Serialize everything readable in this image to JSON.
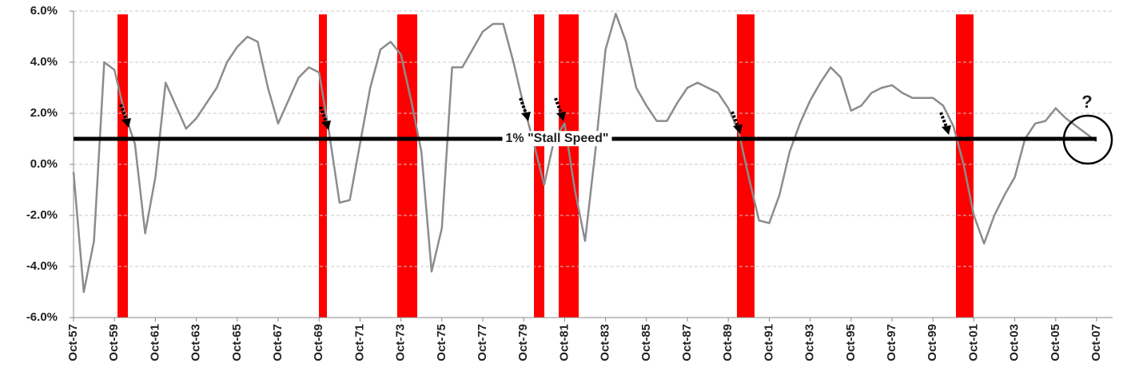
{
  "chart_data": {
    "type": "line",
    "categories": [
      "Oct-57",
      null,
      null,
      null,
      "Oct-59",
      null,
      null,
      null,
      "Oct-61",
      null,
      null,
      null,
      "Oct-63",
      null,
      null,
      null,
      "Oct-65",
      null,
      null,
      null,
      "Oct-67",
      null,
      null,
      null,
      "Oct-69",
      null,
      null,
      null,
      "Oct-71",
      null,
      null,
      null,
      "Oct-73",
      null,
      null,
      null,
      "Oct-75",
      null,
      null,
      null,
      "Oct-77",
      null,
      null,
      null,
      "Oct-79",
      null,
      null,
      null,
      "Oct-81",
      null,
      null,
      null,
      "Oct-83",
      null,
      null,
      null,
      "Oct-85",
      null,
      null,
      null,
      "Oct-87",
      null,
      null,
      null,
      "Oct-89",
      null,
      null,
      null,
      "Oct-91",
      null,
      null,
      null,
      "Oct-93",
      null,
      null,
      null,
      "Oct-95",
      null,
      null,
      null,
      "Oct-97",
      null,
      null,
      null,
      "Oct-99",
      null,
      null,
      null,
      "Oct-01",
      null,
      null,
      null,
      "Oct-03",
      null,
      null,
      null,
      "Oct-05",
      null,
      null,
      null,
      "Oct-07"
    ],
    "values": [
      -0.3,
      -5.0,
      -3.0,
      4.0,
      3.7,
      2.0,
      0.8,
      -2.7,
      -0.5,
      3.2,
      2.3,
      1.4,
      1.8,
      2.4,
      3.0,
      4.0,
      4.6,
      5.0,
      4.8,
      3.0,
      1.6,
      2.5,
      3.4,
      3.8,
      3.6,
      1.2,
      -1.5,
      -1.4,
      0.8,
      3.0,
      4.5,
      4.8,
      4.3,
      2.5,
      0.5,
      -4.2,
      -2.5,
      3.8,
      3.8,
      4.5,
      5.2,
      5.5,
      5.5,
      4.0,
      2.3,
      0.8,
      -0.8,
      1.0,
      1.6,
      -1.0,
      -3.0,
      0.5,
      4.5,
      5.9,
      4.8,
      3.0,
      2.3,
      1.7,
      1.7,
      2.4,
      3.0,
      3.2,
      3.0,
      2.8,
      2.2,
      1.3,
      -0.5,
      -2.2,
      -2.3,
      -1.2,
      0.5,
      1.6,
      2.5,
      3.2,
      3.8,
      3.4,
      2.1,
      2.3,
      2.8,
      3.0,
      3.1,
      2.8,
      2.6,
      2.6,
      2.6,
      2.3,
      1.5,
      0.0,
      -2.0,
      -3.1,
      -2.0,
      -1.2,
      -0.5,
      1.0,
      1.6,
      1.7,
      2.2,
      1.8,
      1.5,
      1.2,
      0.9
    ],
    "color": "#8c8c8c",
    "ylim": [
      -6,
      6
    ],
    "yticks": [
      {
        "value": 6,
        "label": "6.0%"
      },
      {
        "value": 4,
        "label": "4.0%"
      },
      {
        "value": 2,
        "label": "2.0%"
      },
      {
        "value": 0,
        "label": "0.0%"
      },
      {
        "value": -2,
        "label": "-2.0%"
      },
      {
        "value": -4,
        "label": "-4.0%"
      },
      {
        "value": -6,
        "label": "-6.0%"
      }
    ],
    "grid": true,
    "reference_line": {
      "value": 1,
      "label": "1% \"Stall Speed\"",
      "color": "#000000"
    },
    "annotation": "?"
  }
}
